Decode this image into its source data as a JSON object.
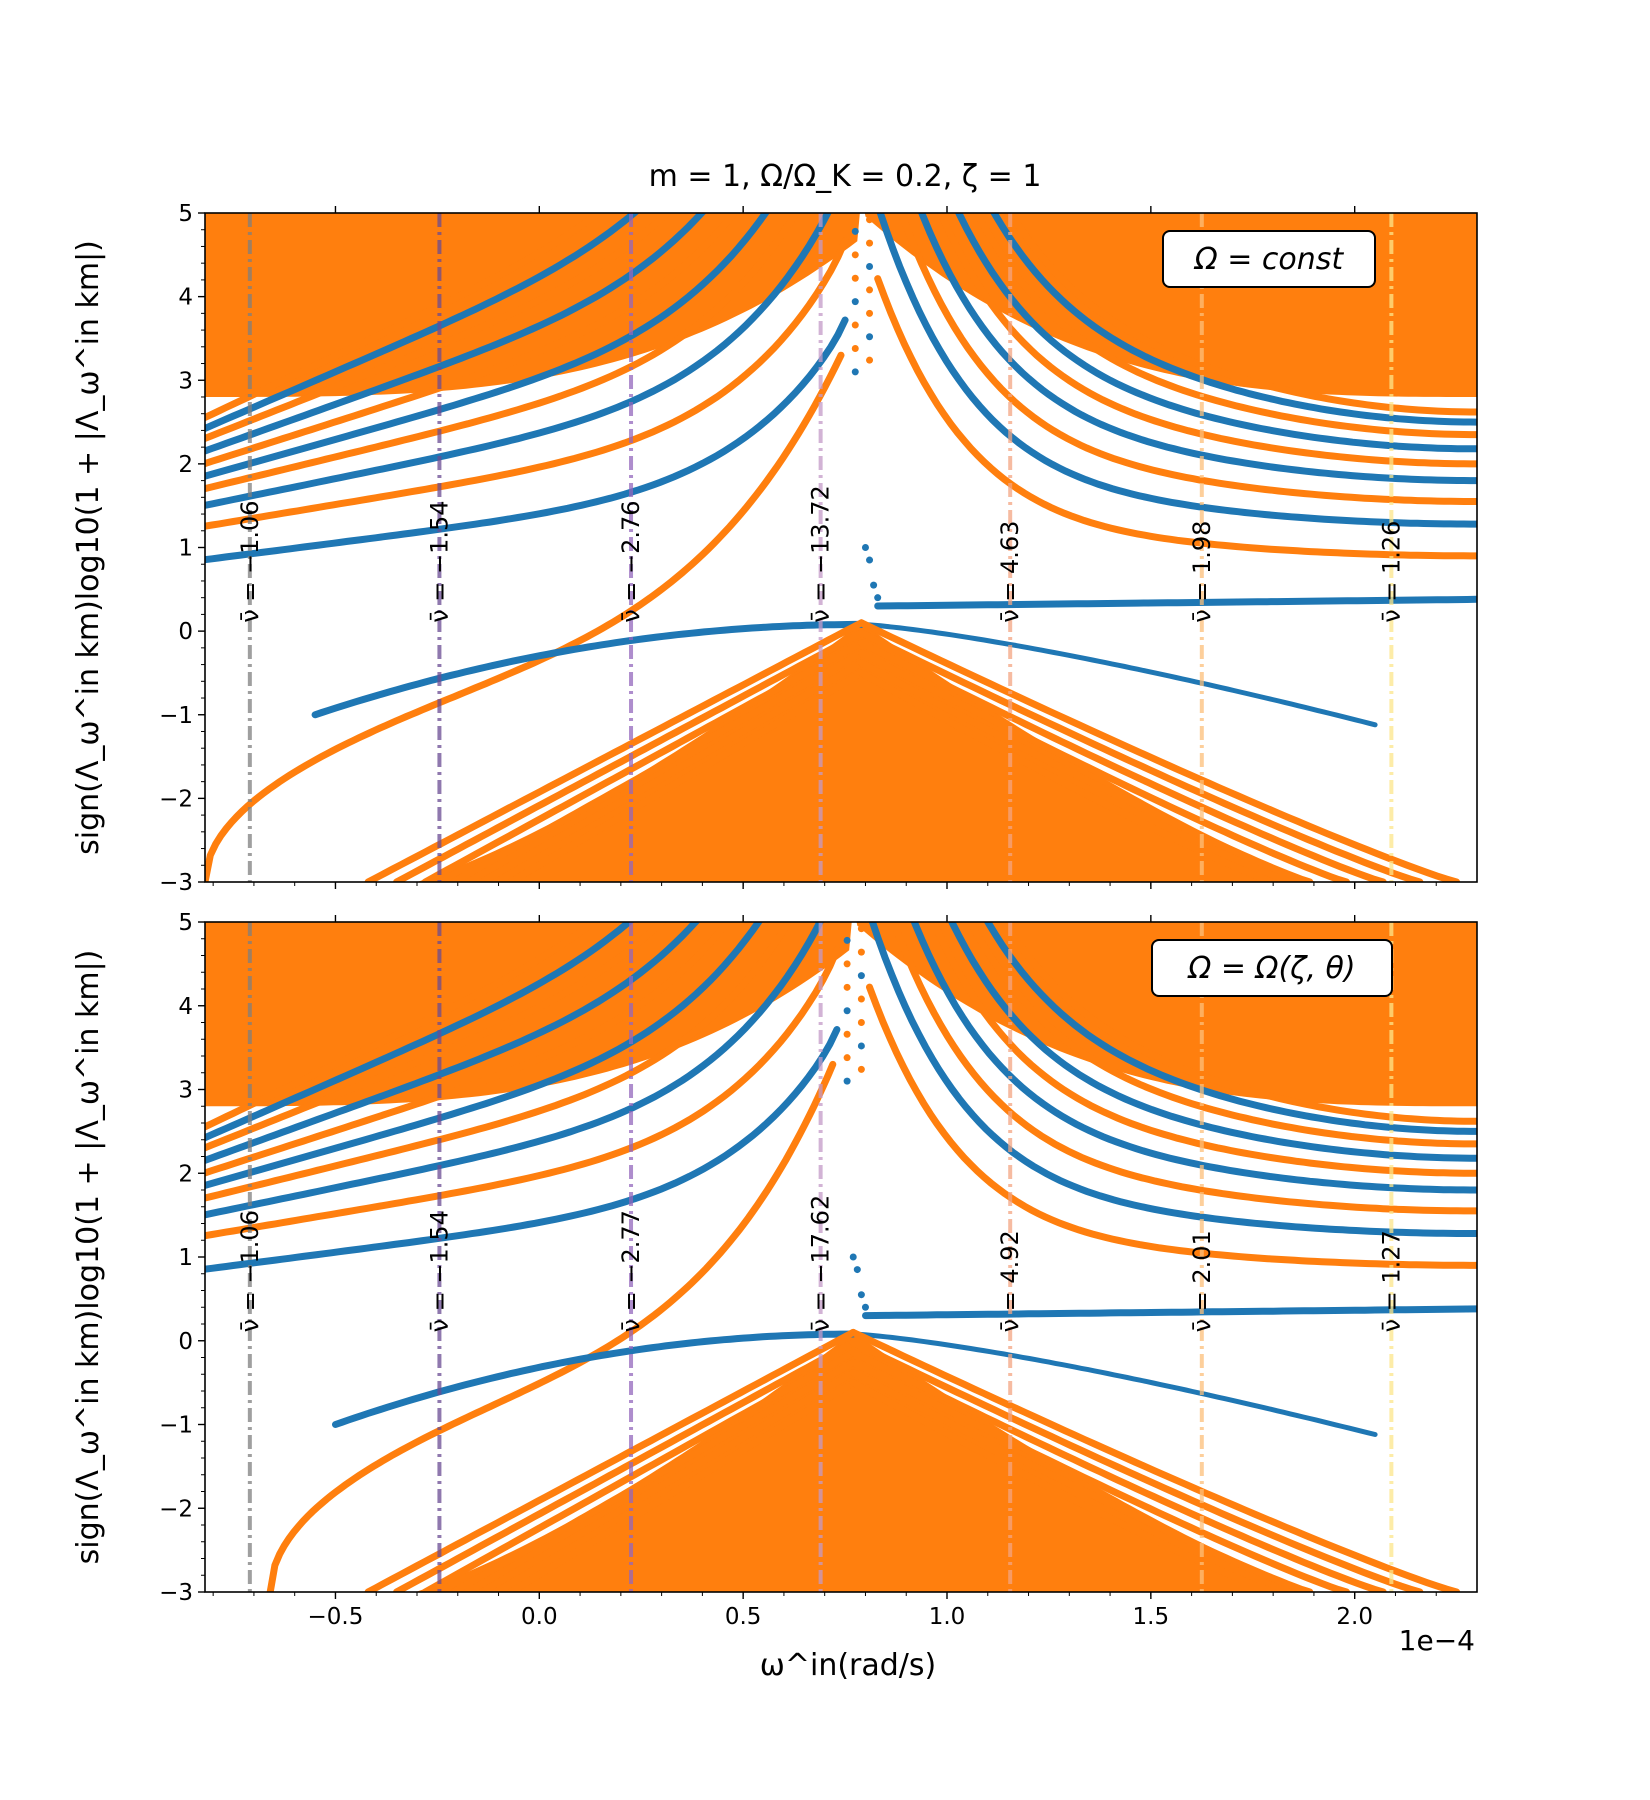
{
  "figure": {
    "title": "m = 1,  Ω/Ω_K = 0.2,  ζ = 1",
    "xlabel": "ω^in(rad/s)",
    "x_offset_label": "1e−4",
    "colors": {
      "orange": "#ff7f0e",
      "blue": "#1f77b4"
    }
  },
  "chart_data": [
    {
      "type": "scatter",
      "panel": "top",
      "legend": "Ω = const",
      "ylabel": "sign(Λ_ω^in km)log10(1 + |Λ_ω^in km|)",
      "xlim": [
        -0.82,
        2.3
      ],
      "ylim": [
        -3,
        5
      ],
      "x_scale": "1e-4",
      "xticks": [
        -0.5,
        0.0,
        0.5,
        1.0,
        1.5,
        2.0
      ],
      "xtick_labels": [
        "−0.5",
        "0.0",
        "0.5",
        "1.0",
        "1.5",
        "2.0"
      ],
      "yticks": [
        -3,
        -2,
        -1,
        0,
        1,
        2,
        3,
        4,
        5
      ],
      "ytick_labels": [
        "−3",
        "−2",
        "−1",
        "0",
        "1",
        "2",
        "3",
        "4",
        "5"
      ],
      "resonance_x": 0.79,
      "vlines": [
        {
          "x": -0.71,
          "label": "ν̄ = −1.06",
          "color": "#7f7f7f"
        },
        {
          "x": -0.245,
          "label": "ν̄ = −1.54",
          "color": "#6a4c93"
        },
        {
          "x": 0.225,
          "label": "ν̄ = −2.76",
          "color": "#9467bd"
        },
        {
          "x": 0.69,
          "label": "ν̄ = −13.72",
          "color": "#c49ac8"
        },
        {
          "x": 1.155,
          "label": "ν̄ = 4.63",
          "color": "#f4a582"
        },
        {
          "x": 1.625,
          "label": "ν̄ = 1.98",
          "color": "#fdc07a"
        },
        {
          "x": 2.09,
          "label": "ν̄ = 1.26",
          "color": "#fde68a"
        }
      ],
      "series": [
        {
          "name": "upper-left-1",
          "color": "#1f77b4",
          "x_start": -0.8,
          "y_at_start": 0.85,
          "y_near_res": 2.7
        },
        {
          "name": "upper-left-2",
          "color": "#ff7f0e",
          "x_start": -0.8,
          "y_at_start": 1.25,
          "y_near_res": 3.0
        },
        {
          "name": "upper-left-3",
          "color": "#1f77b4",
          "x_start": -0.8,
          "y_at_start": 1.5,
          "y_near_res": 3.2
        },
        {
          "name": "upper-right-1",
          "color": "#1f77b4",
          "x_end": 2.3,
          "y_at_end": 1.3,
          "y_near_res": 3.8
        },
        {
          "name": "upper-right-2",
          "color": "#ff7f0e",
          "x_end": 2.3,
          "y_at_end": 0.9,
          "y_near_res": 4.2
        },
        {
          "name": "crossing-branch",
          "color": "#ff7f0e",
          "x_start": -0.82,
          "y_at_start": -3.0,
          "y_near_res": 3.2
        },
        {
          "name": "flat-branch",
          "color": "#1f77b4",
          "x_start": 0.83,
          "y_at_start": 0.3,
          "y_at_end": 0.38
        },
        {
          "name": "lower-envelope-blue",
          "color": "#1f77b4",
          "x_start": -0.55,
          "y_at_start": -1.0,
          "y_peak": 0.08
        }
      ]
    },
    {
      "type": "scatter",
      "panel": "bottom",
      "legend": "Ω = Ω(ζ, θ)",
      "ylabel": "sign(Λ_ω^in km)log10(1 + |Λ_ω^in km|)",
      "xlim": [
        -0.82,
        2.3
      ],
      "ylim": [
        -3,
        5
      ],
      "x_scale": "1e-4",
      "xticks": [
        -0.5,
        0.0,
        0.5,
        1.0,
        1.5,
        2.0
      ],
      "xtick_labels": [
        "−0.5",
        "0.0",
        "0.5",
        "1.0",
        "1.5",
        "2.0"
      ],
      "yticks": [
        -3,
        -2,
        -1,
        0,
        1,
        2,
        3,
        4,
        5
      ],
      "ytick_labels": [
        "−3",
        "−2",
        "−1",
        "0",
        "1",
        "2",
        "3",
        "4",
        "5"
      ],
      "resonance_x": 0.77,
      "vlines": [
        {
          "x": -0.71,
          "label": "ν̄ = −1.06",
          "color": "#7f7f7f"
        },
        {
          "x": -0.245,
          "label": "ν̄ = −1.54",
          "color": "#6a4c93"
        },
        {
          "x": 0.225,
          "label": "ν̄ = −2.77",
          "color": "#9467bd"
        },
        {
          "x": 0.69,
          "label": "ν̄ = −17.62",
          "color": "#c49ac8"
        },
        {
          "x": 1.155,
          "label": "ν̄ = 4.92",
          "color": "#f4a582"
        },
        {
          "x": 1.625,
          "label": "ν̄ = 2.01",
          "color": "#fdc07a"
        },
        {
          "x": 2.09,
          "label": "ν̄ = 1.27",
          "color": "#fde68a"
        }
      ],
      "series": [
        {
          "name": "upper-left-1",
          "color": "#1f77b4",
          "x_start": -0.8,
          "y_at_start": 0.85,
          "y_near_res": 2.7
        },
        {
          "name": "upper-left-2",
          "color": "#ff7f0e",
          "x_start": -0.8,
          "y_at_start": 1.25,
          "y_near_res": 3.0
        },
        {
          "name": "upper-right-1",
          "color": "#1f77b4",
          "x_end": 2.3,
          "y_at_end": 1.25,
          "y_near_res": 3.8
        },
        {
          "name": "upper-right-2",
          "color": "#ff7f0e",
          "x_end": 2.3,
          "y_at_end": 0.9,
          "y_near_res": 4.2
        },
        {
          "name": "crossing-branch",
          "color": "#ff7f0e",
          "x_start": -0.66,
          "y_at_start": -3.0,
          "y_near_res": 3.2
        },
        {
          "name": "flat-branch",
          "color": "#1f77b4",
          "x_start": 0.8,
          "y_at_start": 0.3,
          "y_at_end": 0.38
        },
        {
          "name": "lower-envelope-blue",
          "color": "#1f77b4",
          "x_start": -0.5,
          "y_at_start": -1.0,
          "y_peak": 0.08
        }
      ]
    }
  ]
}
